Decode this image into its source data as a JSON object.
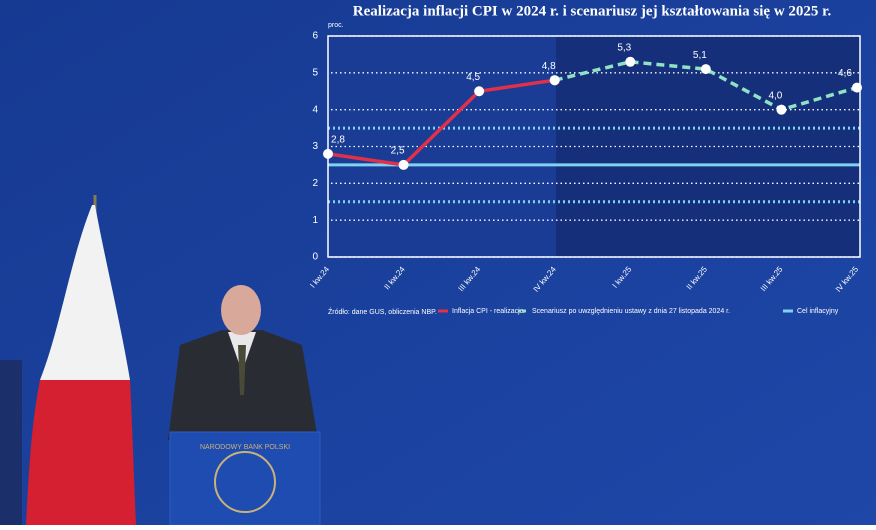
{
  "chart_data": {
    "type": "line",
    "title": "Realizacja inflacji CPI w 2024 r. i scenariusz jej kształtowania się w 2025 r.",
    "y_unit": "proc.",
    "source": "Źródło: dane GUS, obliczenia NBP.",
    "categories": [
      "I kw.24",
      "II kw.24",
      "III kw.24",
      "IV kw.24",
      "I kw.25",
      "II kw.25",
      "III kw.25",
      "IV kw.25"
    ],
    "series": [
      {
        "name": "Inflacja CPI - realizacja",
        "color": "#e0304a",
        "style": "solid",
        "values": [
          2.8,
          2.5,
          4.5,
          4.8,
          null,
          null,
          null,
          null
        ],
        "value_labels": [
          "2,8",
          "2,5",
          "4,5",
          "4,8",
          null,
          null,
          null,
          null
        ]
      },
      {
        "name": "Scenariusz po uwzględnieniu ustawy z dnia 27 listopada 2024 r.",
        "color": "#8fe3c4",
        "style": "dashed",
        "values": [
          null,
          null,
          null,
          4.8,
          5.3,
          5.1,
          4.0,
          4.6
        ],
        "value_labels": [
          null,
          null,
          null,
          null,
          "5,3",
          "5,1",
          "4,0",
          "4,6"
        ]
      }
    ],
    "target": {
      "name": "Cel inflacyjny",
      "value": 2.5,
      "color": "#7fd3f2"
    },
    "band": [
      1.5,
      3.5
    ],
    "ylim": [
      0,
      6
    ],
    "yticks": [
      0,
      1,
      2,
      3,
      4,
      5,
      6
    ],
    "grid": true
  },
  "scene": {
    "podium_text": "NARODOWY BANK POLSKI"
  }
}
